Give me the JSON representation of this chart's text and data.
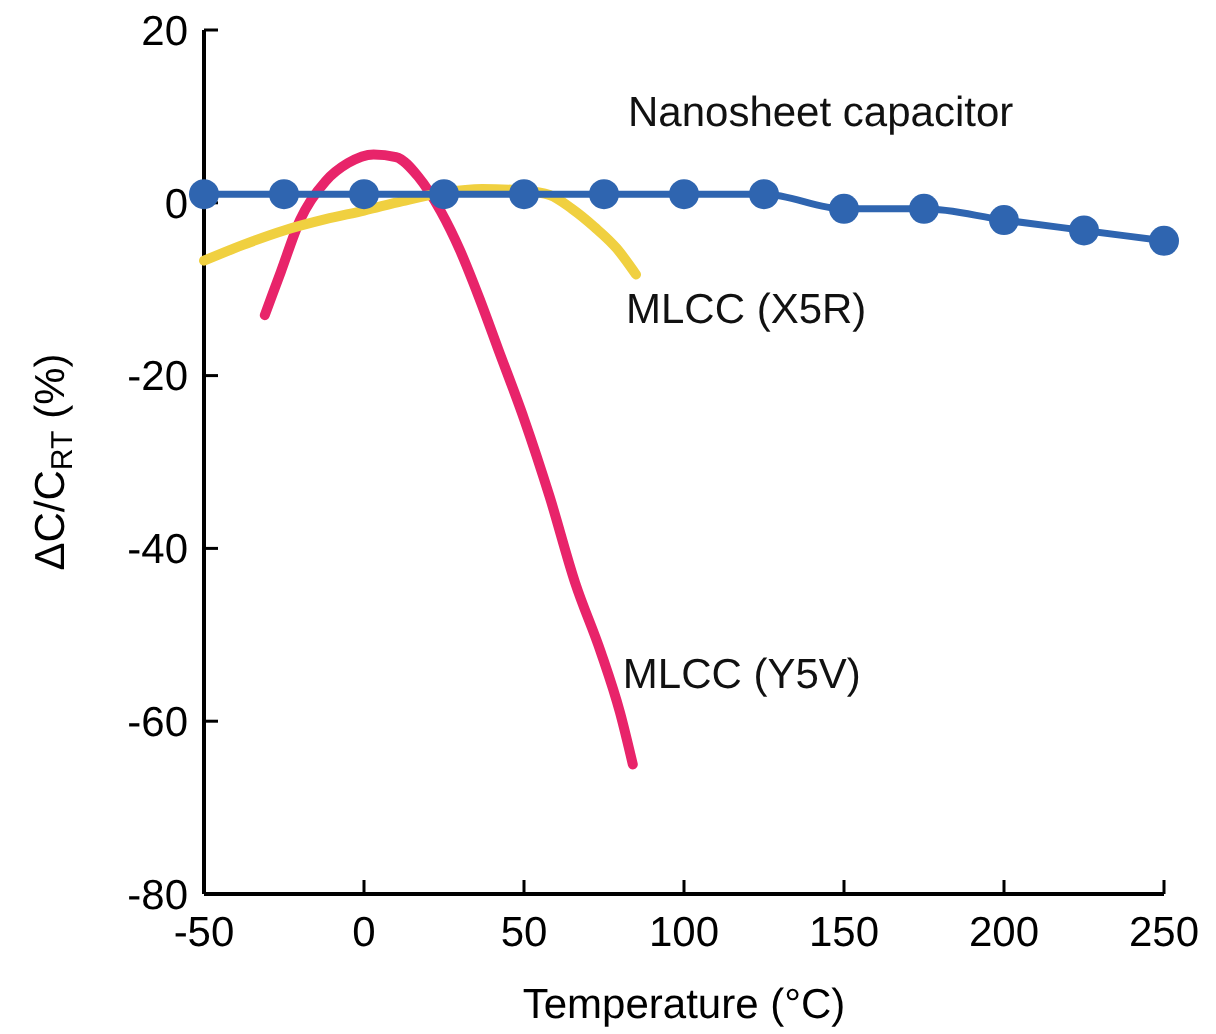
{
  "chart_data": {
    "type": "line",
    "xlabel": "Temperature (°C)",
    "ylabel": "ΔC/C$_{RT}$ (%)",
    "xlim": [
      -50,
      250
    ],
    "ylim": [
      -80,
      20
    ],
    "xticks": [
      -50,
      0,
      50,
      100,
      150,
      200,
      250
    ],
    "yticks": [
      -80,
      -60,
      -40,
      -20,
      0,
      20
    ],
    "grid": false,
    "series": [
      {
        "name": "Nanosheet capacitor",
        "color": "#2f65b0",
        "marker": "circle",
        "x": [
          -50,
          -25,
          0,
          25,
          50,
          75,
          100,
          125,
          150,
          175,
          200,
          225,
          250
        ],
        "values": [
          1,
          1,
          1,
          1,
          1,
          1,
          1,
          1,
          -0.7,
          -0.7,
          -2,
          -3.2,
          -4.4
        ]
      },
      {
        "name": "MLCC (X5R)",
        "color": "#f0d040",
        "marker": "none",
        "x": [
          -50,
          -38,
          -25,
          -12,
          0,
          12,
          25,
          37,
          50,
          58,
          65,
          72,
          79,
          85
        ],
        "values": [
          -6.7,
          -4.9,
          -3.2,
          -1.9,
          -0.9,
          0.2,
          1.2,
          1.6,
          1.4,
          0.9,
          -0.7,
          -2.8,
          -5.3,
          -8.3
        ]
      },
      {
        "name": "MLCC (Y5V)",
        "color": "#e8246a",
        "marker": "none",
        "x": [
          -31,
          -26,
          -20,
          -12,
          -5,
          3,
          10,
          17,
          24,
          30,
          36,
          42,
          50,
          58,
          66,
          74,
          80,
          84
        ],
        "values": [
          -13,
          -8,
          -2,
          2.5,
          4.6,
          5.6,
          5.3,
          3,
          -1,
          -5.5,
          -11,
          -17,
          -25,
          -34,
          -44,
          -52,
          -59,
          -65
        ]
      }
    ]
  }
}
